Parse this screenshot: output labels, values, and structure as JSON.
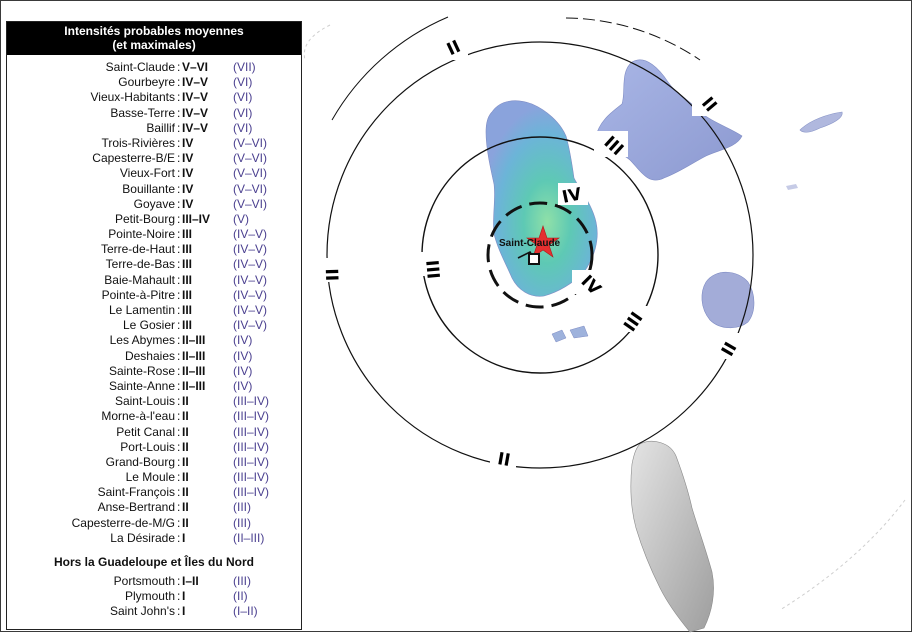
{
  "legend": {
    "title_line1": "Intensités probables moyennes",
    "title_line2": "(et maximales)",
    "rows": [
      {
        "name": "Saint-Claude",
        "value": "V–VI",
        "max": "(VII)"
      },
      {
        "name": "Gourbeyre",
        "value": "IV–V",
        "max": "(VI)"
      },
      {
        "name": "Vieux-Habitants",
        "value": "IV–V",
        "max": "(VI)"
      },
      {
        "name": "Basse-Terre",
        "value": "IV–V",
        "max": "(VI)"
      },
      {
        "name": "Baillif",
        "value": "IV–V",
        "max": "(VI)"
      },
      {
        "name": "Trois-Rivières",
        "value": "IV",
        "max": "(V–VI)"
      },
      {
        "name": "Capesterre-B/E",
        "value": "IV",
        "max": "(V–VI)"
      },
      {
        "name": "Vieux-Fort",
        "value": "IV",
        "max": "(V–VI)"
      },
      {
        "name": "Bouillante",
        "value": "IV",
        "max": "(V–VI)"
      },
      {
        "name": "Goyave",
        "value": "IV",
        "max": "(V–VI)"
      },
      {
        "name": "Petit-Bourg",
        "value": "III–IV",
        "max": "(V)"
      },
      {
        "name": "Pointe-Noire",
        "value": "III",
        "max": "(IV–V)"
      },
      {
        "name": "Terre-de-Haut",
        "value": "III",
        "max": "(IV–V)"
      },
      {
        "name": "Terre-de-Bas",
        "value": "III",
        "max": "(IV–V)"
      },
      {
        "name": "Baie-Mahault",
        "value": "III",
        "max": "(IV–V)"
      },
      {
        "name": "Pointe-à-Pitre",
        "value": "III",
        "max": "(IV–V)"
      },
      {
        "name": "Le Lamentin",
        "value": "III",
        "max": "(IV–V)"
      },
      {
        "name": "Le Gosier",
        "value": "III",
        "max": "(IV–V)"
      },
      {
        "name": "Les Abymes",
        "value": "II–III",
        "max": "(IV)"
      },
      {
        "name": "Deshaies",
        "value": "II–III",
        "max": "(IV)"
      },
      {
        "name": "Sainte-Rose",
        "value": "II–III",
        "max": "(IV)"
      },
      {
        "name": "Sainte-Anne",
        "value": "II–III",
        "max": "(IV)"
      },
      {
        "name": "Saint-Louis",
        "value": "II",
        "max": "(III–IV)"
      },
      {
        "name": "Morne-à-l'eau",
        "value": "II",
        "max": "(III–IV)"
      },
      {
        "name": "Petit Canal",
        "value": "II",
        "max": "(III–IV)"
      },
      {
        "name": "Port-Louis",
        "value": "II",
        "max": "(III–IV)"
      },
      {
        "name": "Grand-Bourg",
        "value": "II",
        "max": "(III–IV)"
      },
      {
        "name": "Le Moule",
        "value": "II",
        "max": "(III–IV)"
      },
      {
        "name": "Saint-François",
        "value": "II",
        "max": "(III–IV)"
      },
      {
        "name": "Anse-Bertrand",
        "value": "II",
        "max": "(III)"
      },
      {
        "name": "Capesterre-de-M/G",
        "value": "II",
        "max": "(III)"
      },
      {
        "name": "La Désirade",
        "value": "I",
        "max": "(II–III)"
      }
    ],
    "section_title": "Hors la Guadeloupe et Îles du Nord",
    "rows_outside": [
      {
        "name": "Portsmouth",
        "value": "I–II",
        "max": "(III)"
      },
      {
        "name": "Plymouth",
        "value": "I",
        "max": "(II)"
      },
      {
        "name": "Saint John's",
        "value": "I",
        "max": "(I–II)"
      }
    ],
    "separator": ":"
  },
  "map": {
    "epicenter_label": "Saint-Claude",
    "ring_labels": {
      "iv": "IV",
      "iii": "III",
      "ii": "II"
    },
    "colors": {
      "ring": "#111111",
      "epicenter_star": "#e53030",
      "legend_max": "#4a3f8f",
      "basse_terre_core": "#5ec9a6",
      "grande_terre": "#9aa7dc",
      "dominica": "#c8c8c8"
    }
  }
}
